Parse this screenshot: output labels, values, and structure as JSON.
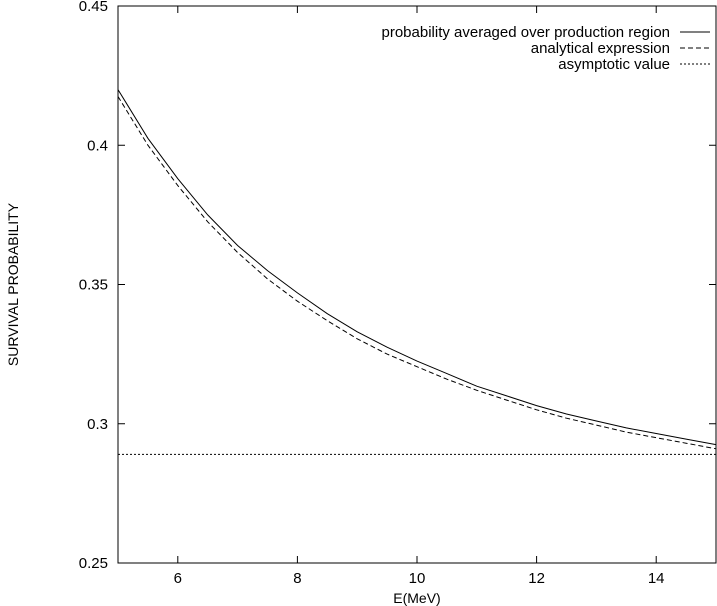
{
  "chart_data": {
    "type": "line",
    "xlabel": "E(MeV)",
    "ylabel": "SURVIVAL PROBABILITY",
    "xlim": [
      5,
      15
    ],
    "ylim": [
      0.25,
      0.45
    ],
    "xticks": [
      6,
      8,
      10,
      12,
      14
    ],
    "yticks": [
      0.25,
      0.3,
      0.35,
      0.4,
      0.45
    ],
    "x_tick_labels": [
      "6",
      "8",
      "10",
      "12",
      "14"
    ],
    "y_tick_labels": [
      "0.25",
      "0.3",
      "0.35",
      "0.4",
      "0.45"
    ],
    "grid": false,
    "legend_position": "top-right",
    "series": [
      {
        "name": "probability averaged over production region",
        "style": "solid",
        "color": "#000000",
        "x": [
          5,
          5.5,
          6,
          6.5,
          7,
          7.5,
          8,
          8.5,
          9,
          9.5,
          10,
          10.5,
          11,
          11.5,
          12,
          12.5,
          13,
          13.5,
          14,
          14.5,
          15
        ],
        "y": [
          0.42,
          0.4025,
          0.388,
          0.375,
          0.364,
          0.355,
          0.347,
          0.3395,
          0.333,
          0.3275,
          0.3225,
          0.318,
          0.3135,
          0.31,
          0.3065,
          0.3035,
          0.301,
          0.2985,
          0.2965,
          0.2945,
          0.2925
        ]
      },
      {
        "name": "analytical expression",
        "style": "dashed",
        "color": "#000000",
        "x": [
          5,
          5.5,
          6,
          6.5,
          7,
          7.5,
          8,
          8.5,
          9,
          9.5,
          10,
          10.5,
          11,
          11.5,
          12,
          12.5,
          13,
          13.5,
          14,
          14.5,
          15
        ],
        "y": [
          0.4175,
          0.4,
          0.3855,
          0.3725,
          0.3615,
          0.352,
          0.344,
          0.337,
          0.3305,
          0.325,
          0.3205,
          0.316,
          0.312,
          0.3085,
          0.305,
          0.302,
          0.2995,
          0.297,
          0.295,
          0.293,
          0.291
        ]
      },
      {
        "name": "asymptotic value",
        "style": "dotted",
        "color": "#000000",
        "x": [
          5,
          15
        ],
        "y": [
          0.289,
          0.289
        ]
      }
    ]
  }
}
